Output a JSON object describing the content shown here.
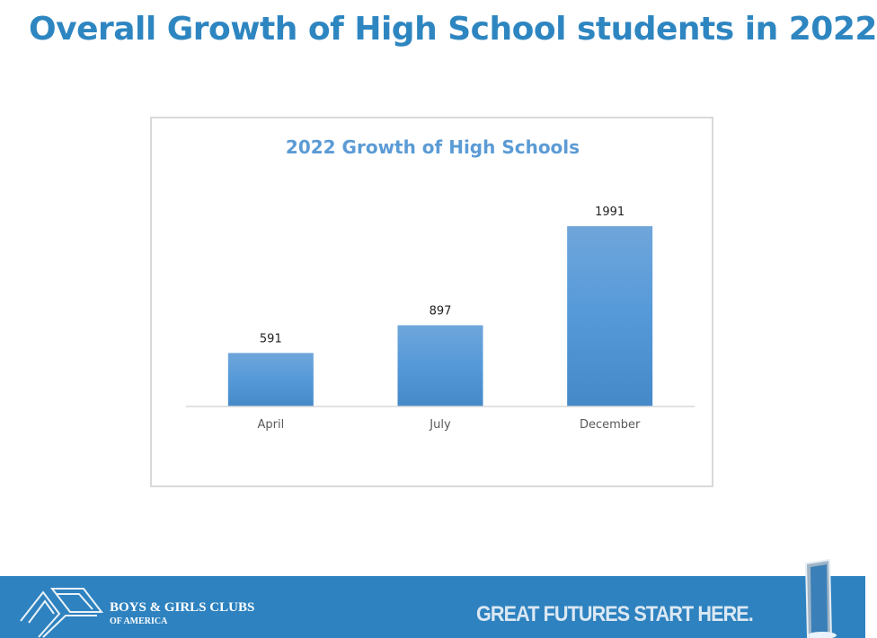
{
  "slide_title": "Overall Growth of High School students in 2022",
  "chart_data": {
    "type": "bar",
    "title": "2022 Growth of High Schools",
    "categories": [
      "April",
      "July",
      "December"
    ],
    "values": [
      591,
      897,
      1991
    ],
    "xlabel": "",
    "ylabel": "",
    "ylim": [
      0,
      2200
    ],
    "grid": false,
    "bar_color": "#5b9bd5"
  },
  "footer": {
    "org_name": "BOYS & GIRLS CLUBS",
    "org_sub": "OF AMERICA",
    "tagline": "GREAT FUTURES START HERE.",
    "color": "#2e82bf"
  }
}
